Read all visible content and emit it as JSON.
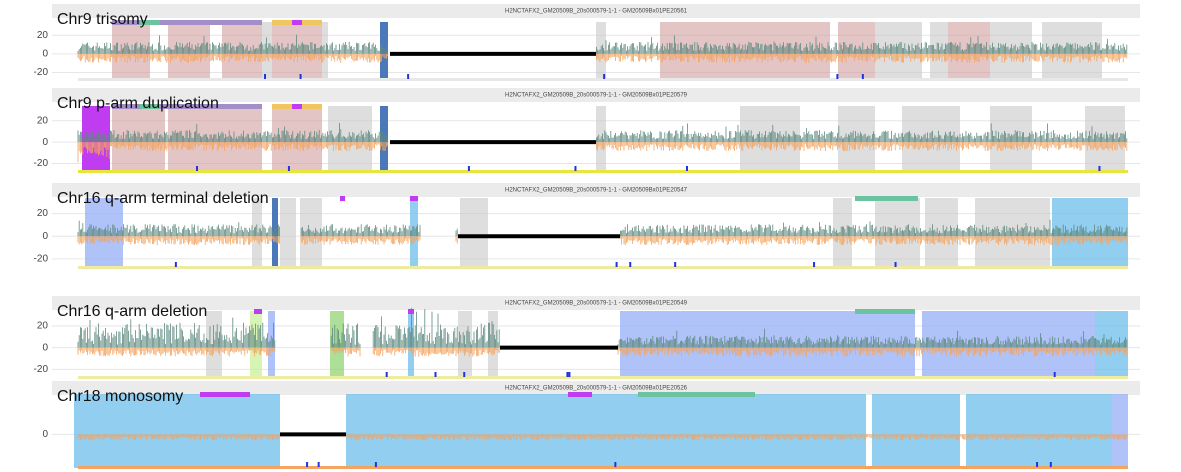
{
  "chart_data": [
    {
      "type": "signal",
      "title": "H2NCTAFX2_GM20509B_20s000579-1-1 - GM20509Bx01PE20561",
      "label": "Chr9 trisomy",
      "ylim": [
        -28,
        32
      ],
      "yticks": [
        20,
        0,
        -20
      ]
    },
    {
      "type": "signal",
      "title": "H2NCTAFX2_GM20509B_20s000579-1-1 - GM20509Bx01PE20579",
      "label": "Chr9 p-arm duplication",
      "ylim": [
        -28,
        32
      ],
      "yticks": [
        20,
        0,
        -20
      ]
    },
    {
      "type": "signal",
      "title": "H2NCTAFX2_GM20509B_20s000579-1-1 - GM20509Bx01PE20547",
      "label": "Chr16 q-arm terminal deletion",
      "ylim": [
        -28,
        32
      ],
      "yticks": [
        20,
        0,
        -20
      ]
    },
    {
      "type": "signal",
      "title": "H2NCTAFX2_GM20509B_20s000579-1-1 - GM20509Bx01PE20549",
      "label": "Chr16 q-arm deletion",
      "ylim": [
        -28,
        32
      ],
      "yticks": [
        20,
        0,
        -20
      ]
    },
    {
      "type": "signal",
      "title": "H2NCTAFX2_GM20509B_20s000579-1-1 - GM20509Bx01PE20526",
      "label": "Chr18 monosomy",
      "ylim": [
        -28,
        32
      ],
      "yticks": [
        0
      ]
    }
  ]
}
